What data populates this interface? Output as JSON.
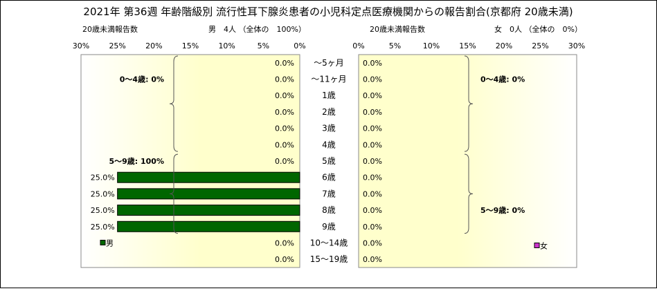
{
  "title": "2021年 第36週 年齢階級別 流行性耳下腺炎患者の小児科定点医療機関からの報告割合(京都府 20歳未満)",
  "chart_data": [
    {
      "type": "bar",
      "orientation": "horizontal-reversed",
      "subtitle_left": "20歳未満報告数",
      "subtitle_right": "男　4人 （全体の　100%）",
      "series": [
        {
          "name": "男",
          "color": "#006600",
          "values": [
            0,
            0,
            0,
            0,
            0,
            0,
            0,
            25,
            25,
            25,
            25,
            0,
            0
          ]
        }
      ],
      "value_labels": [
        "0.0%",
        "0.0%",
        "0.0%",
        "0.0%",
        "0.0%",
        "0.0%",
        "0.0%",
        "25.0%",
        "25.0%",
        "25.0%",
        "25.0%",
        "0.0%",
        "0.0%"
      ],
      "xlim": [
        0,
        30
      ],
      "xticks": [
        "30%",
        "25%",
        "20%",
        "15%",
        "10%",
        "5%",
        "0%"
      ],
      "groups": [
        {
          "label": "0～4歳: 0%",
          "from": 0,
          "to": 5
        },
        {
          "label": "5～9歳: 100%",
          "from": 6,
          "to": 10
        }
      ],
      "legend": "bottom-left"
    },
    {
      "type": "bar",
      "orientation": "horizontal",
      "subtitle_left": "20歳未満報告数",
      "subtitle_right": "女　0人 （全体の　0%）",
      "series": [
        {
          "name": "女",
          "color": "#cc33cc",
          "values": [
            0,
            0,
            0,
            0,
            0,
            0,
            0,
            0,
            0,
            0,
            0,
            0,
            0
          ]
        }
      ],
      "value_labels": [
        "0.0%",
        "0.0%",
        "0.0%",
        "0.0%",
        "0.0%",
        "0.0%",
        "0.0%",
        "0.0%",
        "0.0%",
        "0.0%",
        "0.0%",
        "0.0%",
        "0.0%"
      ],
      "xlim": [
        0,
        30
      ],
      "xticks": [
        "0%",
        "5%",
        "10%",
        "15%",
        "20%",
        "25%",
        "30%"
      ],
      "groups": [
        {
          "label": "0～4歳: 0%",
          "from": 0,
          "to": 5
        },
        {
          "label": "5～9歳: 0%",
          "from": 6,
          "to": 10
        }
      ],
      "legend": "bottom-right"
    }
  ],
  "categories": [
    "～5ヶ月",
    "～11ヶ月",
    "1歳",
    "2歳",
    "3歳",
    "4歳",
    "5歳",
    "6歳",
    "7歳",
    "8歳",
    "9歳",
    "10～14歳",
    "15～19歳"
  ],
  "colors": {
    "plot_bg_center": "#ffffcc",
    "plot_bg_edge": "#ffffff",
    "male": "#006600",
    "female": "#cc33cc"
  }
}
